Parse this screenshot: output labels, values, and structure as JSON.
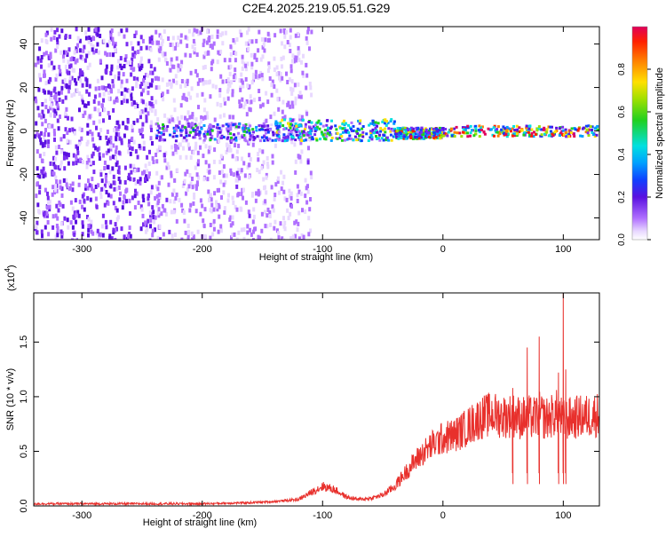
{
  "title": "C2E4.2025.219.05.51.G29",
  "colors": {
    "snr_line": "#e8302c",
    "spectrum_palette": [
      "#ffffff",
      "#e8d8ff",
      "#b070ff",
      "#7a2cf0",
      "#5a10e0",
      "#1040ff",
      "#00a0ff",
      "#00e0e0",
      "#20d020",
      "#a0e000",
      "#ffe000",
      "#ff8000",
      "#ff2000",
      "#e0005a"
    ]
  },
  "chart_data": [
    {
      "type": "heatmap",
      "name_hint": "spectrogram",
      "xlabel": "Height of straight line (km)",
      "ylabel": "Frequency (Hz)",
      "xlim": [
        -340,
        130
      ],
      "ylim": [
        -50,
        48
      ],
      "x_ticks": [
        -300,
        -200,
        -100,
        0,
        100
      ],
      "y_ticks": [
        -40,
        -20,
        0,
        20,
        40
      ],
      "grid": false,
      "regions": [
        {
          "x_range": [
            -340,
            -240
          ],
          "freq_range": [
            -50,
            48
          ],
          "amplitude": 0.25,
          "description_level": "dense noise"
        },
        {
          "x_range": [
            -240,
            -110
          ],
          "freq_range": [
            -50,
            48
          ],
          "amplitude": 0.15,
          "description_level": "sparse noise"
        },
        {
          "x_range": [
            -240,
            -110
          ],
          "freq_range": [
            -4,
            4
          ],
          "amplitude": 0.35,
          "description_level": "band"
        },
        {
          "x_range": [
            -140,
            -40
          ],
          "freq_range": [
            -4,
            6
          ],
          "amplitude": 0.5,
          "description_level": "band"
        },
        {
          "x_range": [
            -40,
            0
          ],
          "freq_range": [
            -3,
            2
          ],
          "amplitude": 0.6,
          "description_level": "band"
        },
        {
          "x_range": [
            0,
            130
          ],
          "freq_range": [
            -2,
            3
          ],
          "amplitude": 0.75,
          "description_level": "band"
        }
      ],
      "colorbar": {
        "label": "Normalized spectral amplitude",
        "range": [
          0,
          1
        ],
        "ticks": [
          0.0,
          0.2,
          0.4,
          0.6,
          0.8
        ]
      }
    },
    {
      "type": "line",
      "name_hint": "snr",
      "xlabel": "Height of straight line (km)",
      "ylabel": "SNR (10 * v/v)",
      "y_multiplier": "(x10",
      "y_multiplier_exp": "4",
      "y_multiplier_close": ")",
      "xlim": [
        -340,
        130
      ],
      "ylim": [
        0,
        1.95
      ],
      "x_ticks": [
        -300,
        -200,
        -100,
        0,
        100
      ],
      "y_ticks": [
        0.0,
        0.5,
        1.0,
        1.5
      ],
      "y_tick_labels": [
        "0.0",
        "0.5",
        "1.0",
        "1.5"
      ],
      "grid": false,
      "series": [
        {
          "x": [
            -340,
            -300,
            -250,
            -200,
            -160,
            -140,
            -120,
            -110,
            -100,
            -90,
            -80,
            -70,
            -60,
            -50,
            -40,
            -30,
            -20,
            -10,
            0,
            10,
            20,
            30,
            40,
            50,
            60,
            65,
            70,
            75,
            80,
            85,
            90,
            95,
            100,
            105,
            110,
            120,
            130
          ],
          "values": [
            0.02,
            0.02,
            0.02,
            0.02,
            0.03,
            0.04,
            0.06,
            0.12,
            0.18,
            0.15,
            0.08,
            0.06,
            0.07,
            0.1,
            0.18,
            0.32,
            0.45,
            0.55,
            0.62,
            0.65,
            0.72,
            0.8,
            0.84,
            0.82,
            0.83,
            0.8,
            0.82,
            0.8,
            0.84,
            0.8,
            0.82,
            0.86,
            0.78,
            0.8,
            0.81,
            0.82,
            0.84
          ]
        }
      ],
      "spikes": [
        {
          "x": 58,
          "y": 1.08
        },
        {
          "x": 70,
          "y": 1.45
        },
        {
          "x": 80,
          "y": 1.55
        },
        {
          "x": 96,
          "y": 1.22
        },
        {
          "x": 100,
          "y": 1.95
        },
        {
          "x": 102,
          "y": 1.25
        }
      ]
    }
  ]
}
